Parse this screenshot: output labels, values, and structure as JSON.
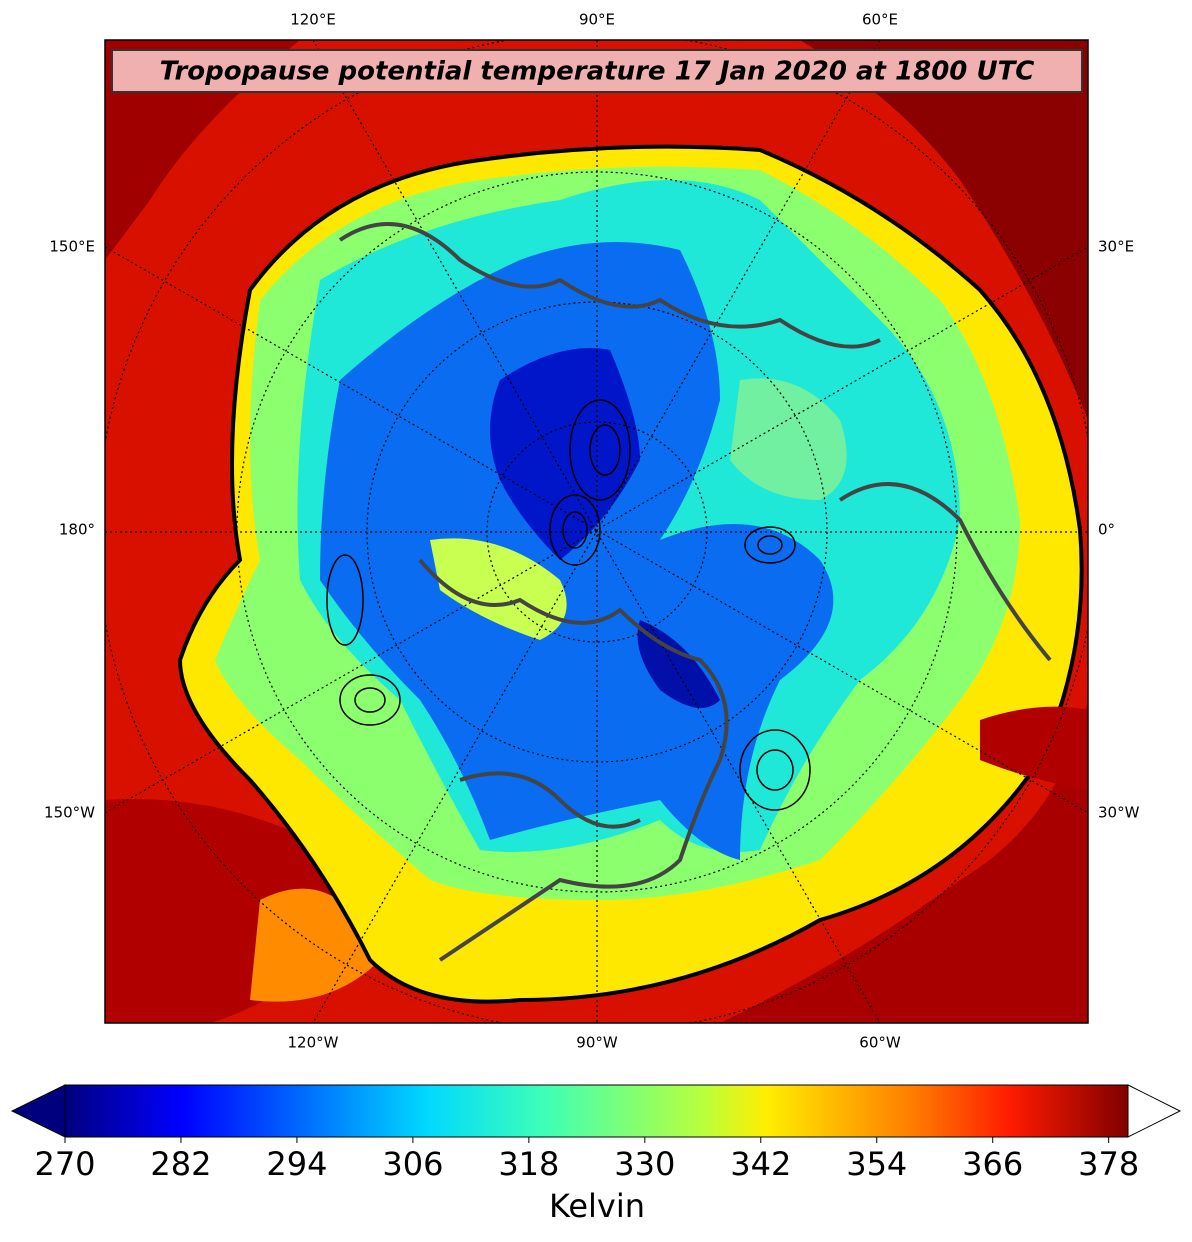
{
  "title": "Tropopause potential temperature 17 Jan 2020 at 1800 UTC",
  "map_labels": {
    "top": [
      "120°E",
      "90°E",
      "60°E"
    ],
    "bottom": [
      "120°W",
      "90°W",
      "60°W"
    ],
    "left": [
      "150°E",
      "180°",
      "150°W"
    ],
    "right": [
      "30°E",
      "0°",
      "30°W"
    ]
  },
  "colorbar": {
    "range": [
      270,
      380
    ],
    "ticks": [
      270,
      282,
      294,
      306,
      318,
      330,
      342,
      354,
      366,
      378
    ],
    "label": "Kelvin"
  }
}
